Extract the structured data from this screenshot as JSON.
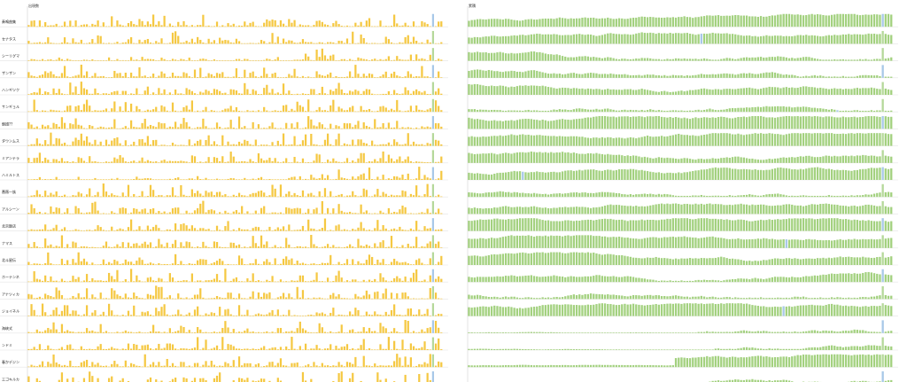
{
  "chart_data": {
    "type": "bar",
    "layout": "small-multiples",
    "panels": [
      {
        "key": "left",
        "title": "出現数",
        "color": "#f5c842"
      },
      {
        "key": "right",
        "title": "累積",
        "color": "#a3d17f"
      }
    ],
    "highlight_colors": {
      "blue": "#a8c8e8",
      "green": "#b5d89a"
    },
    "grid": true,
    "legend": "none",
    "rows": [
      {
        "label": "奏鳴曲集"
      },
      {
        "label": "セナタス"
      },
      {
        "label": "シーリグマ"
      },
      {
        "label": "ザンザン"
      },
      {
        "label": "ハンギツク"
      },
      {
        "label": "サンギョル"
      },
      {
        "label": "朝顔??"
      },
      {
        "label": "ダウンムス"
      },
      {
        "label": "ミアンテラ"
      },
      {
        "label": "ハミルトス"
      },
      {
        "label": "薔薇一族"
      },
      {
        "label": "アルシーン"
      },
      {
        "label": "北京飯店"
      },
      {
        "label": "ナマス"
      },
      {
        "label": "北斗星伝"
      },
      {
        "label": "ホーテンネ"
      },
      {
        "label": "アナツィカ"
      },
      {
        "label": "ジョイネル"
      },
      {
        "label": "海峡式"
      },
      {
        "label": "ンドミ"
      },
      {
        "label": "春かデジン"
      },
      {
        "label": "エゴキルカ"
      }
    ]
  }
}
